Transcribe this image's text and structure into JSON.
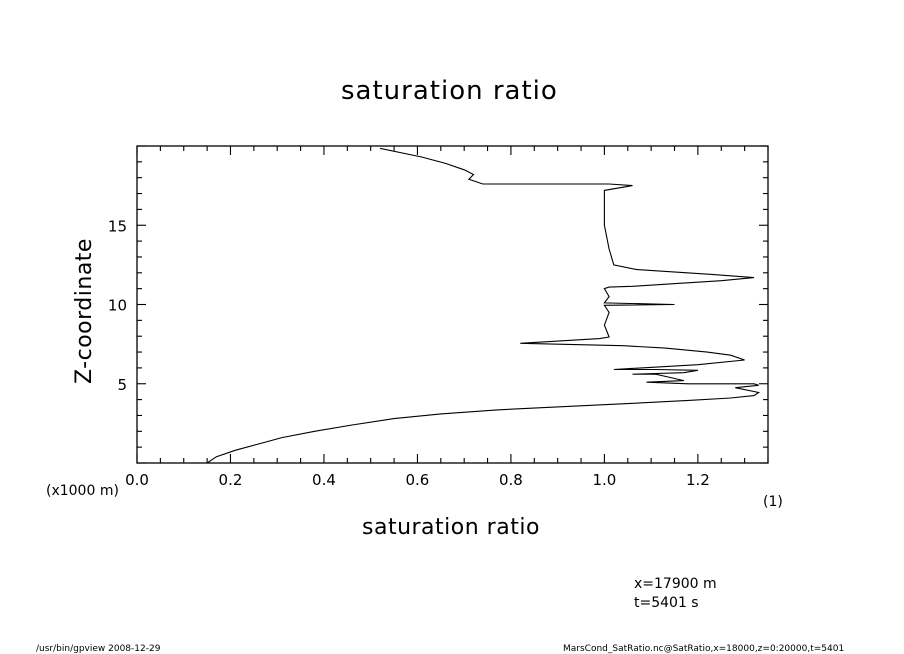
{
  "chart_data": {
    "type": "line",
    "title": "saturation ratio",
    "xlabel": "saturation ratio",
    "ylabel": "Z-coordinate",
    "y_unit_label": "(x1000 m)",
    "x_unit_label": "(1)",
    "xlim": [
      0.0,
      1.35
    ],
    "ylim": [
      0,
      20
    ],
    "x_ticks": [
      "0.0",
      "0.2",
      "0.4",
      "0.6",
      "0.8",
      "1.0",
      "1.2"
    ],
    "y_ticks": [
      "5",
      "10",
      "15"
    ],
    "grid": false,
    "series": [
      {
        "x": [
          0.15,
          0.17,
          0.21,
          0.26,
          0.31,
          0.38,
          0.46,
          0.55,
          0.65,
          0.77,
          0.91,
          1.05,
          1.18,
          1.27,
          1.32,
          1.33,
          1.28,
          1.33,
          1.32,
          1.18,
          1.09,
          1.17,
          1.14,
          1.11,
          1.06,
          1.17,
          1.2,
          1.11,
          1.02,
          1.2,
          1.3,
          1.27,
          1.22,
          1.13,
          1.04,
          0.82,
          0.99,
          1.01,
          1.0,
          1.01,
          1.0,
          1.15,
          1.0,
          1.01,
          1.0,
          1.01,
          1.06,
          1.14,
          1.25,
          1.32,
          1.23,
          1.07,
          1.02,
          1.01,
          1.0,
          1.0,
          1.06,
          1.01,
          0.74,
          0.71,
          0.72,
          0.7,
          0.66,
          0.61,
          0.52
        ],
        "y": [
          0.0,
          0.4,
          0.8,
          1.2,
          1.6,
          2.0,
          2.4,
          2.8,
          3.1,
          3.35,
          3.55,
          3.75,
          3.95,
          4.1,
          4.25,
          4.45,
          4.75,
          4.9,
          5.0,
          5.0,
          5.1,
          5.2,
          5.4,
          5.6,
          5.6,
          5.7,
          5.85,
          5.9,
          5.9,
          6.2,
          6.5,
          6.8,
          7.0,
          7.25,
          7.4,
          7.55,
          7.85,
          7.95,
          8.7,
          9.5,
          9.95,
          10.0,
          10.1,
          10.5,
          11.0,
          11.1,
          11.15,
          11.3,
          11.5,
          11.7,
          11.9,
          12.2,
          12.5,
          13.5,
          15.0,
          17.2,
          17.5,
          17.6,
          17.6,
          17.9,
          18.2,
          18.5,
          18.9,
          19.3,
          19.85
        ]
      }
    ]
  },
  "annotations": {
    "x_position": "x=17900 m",
    "time": "t=5401 s"
  },
  "footer": {
    "left": "/usr/bin/gpview  2008-12-29",
    "right": "MarsCond_SatRatio.nc@SatRatio,x=18000,z=0:20000,t=5401"
  }
}
